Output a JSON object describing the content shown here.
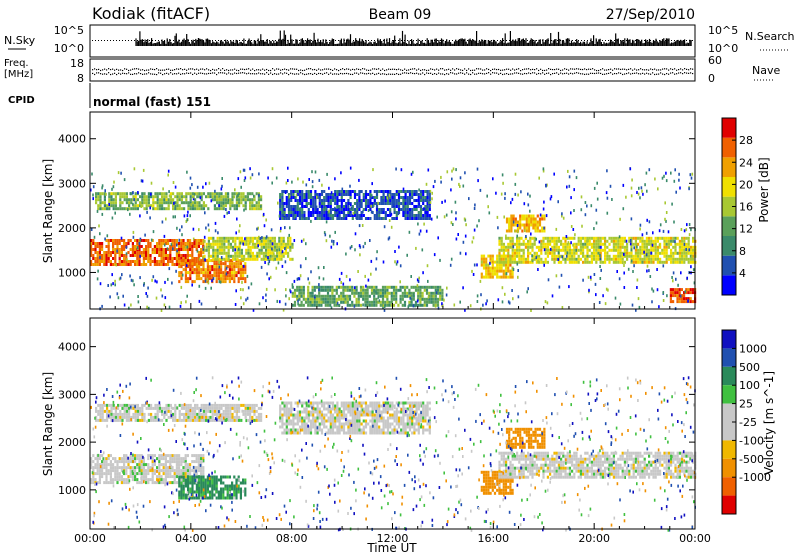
{
  "header": {
    "station": "Kodiak (fitACF)",
    "beam": "Beam 09",
    "date": "27/Sep/2010"
  },
  "top_panels": {
    "nsky_label": "N.Sky",
    "nsearch_label": "N.Search",
    "noise_ticks": [
      "10^5",
      "10^0"
    ],
    "freq_label": "Freq.",
    "freq_unit": "[MHz]",
    "freq_ticks": [
      "18",
      "8"
    ],
    "nave_label": "Nave",
    "nave_ticks": [
      "60",
      "0"
    ],
    "cpid_label": "CPID",
    "cpid_value": "normal (fast) 151"
  },
  "colors": {
    "power_scale": [
      "#0000ff",
      "#2050b0",
      "#3a8a6a",
      "#5aa05a",
      "#a8c832",
      "#f0e000",
      "#f0a000",
      "#f06000",
      "#e00000"
    ],
    "velocity_scale": [
      "#e00000",
      "#f06000",
      "#f09000",
      "#f0b800",
      "#c8c8c8",
      "#c8c8c8",
      "#40c040",
      "#2a8a5a",
      "#2050b0",
      "#1010c0"
    ]
  },
  "chart_data": [
    {
      "type": "heatmap",
      "panel": "power",
      "ylabel": "Slant Range [km]",
      "ylim": [
        180,
        4600
      ],
      "yticks": [
        "1000",
        "2000",
        "3000",
        "4000"
      ],
      "xlim_hours": [
        0,
        24
      ],
      "colorbar_label": "Power [dB]",
      "colorbar_range": [
        0,
        32
      ],
      "colorbar_ticks": [
        "4",
        "8",
        "12",
        "16",
        "20",
        "24",
        "28"
      ],
      "echo_regions": [
        {
          "t": [
            0,
            4.5
          ],
          "r": [
            1150,
            1750
          ],
          "value": 26
        },
        {
          "t": [
            0.2,
            6.8
          ],
          "r": [
            2450,
            2800
          ],
          "value": 14
        },
        {
          "t": [
            3.5,
            6.2
          ],
          "r": [
            800,
            1300
          ],
          "value": 25
        },
        {
          "t": [
            4.5,
            8.0
          ],
          "r": [
            1300,
            1800
          ],
          "value": 17
        },
        {
          "t": [
            7.5,
            13.5
          ],
          "r": [
            2200,
            2850
          ],
          "value": 5
        },
        {
          "t": [
            8.0,
            14.0
          ],
          "r": [
            280,
            700
          ],
          "value": 12
        },
        {
          "t": [
            15.5,
            16.8
          ],
          "r": [
            900,
            1400
          ],
          "value": 21
        },
        {
          "t": [
            16.2,
            24.0
          ],
          "r": [
            1250,
            1800
          ],
          "value": 18
        },
        {
          "t": [
            16.5,
            18.0
          ],
          "r": [
            1900,
            2300
          ],
          "value": 22
        },
        {
          "t": [
            23.0,
            24.0
          ],
          "r": [
            380,
            650
          ],
          "value": 28
        }
      ]
    },
    {
      "type": "heatmap",
      "panel": "velocity",
      "ylabel": "Slant Range [km]",
      "ylim": [
        180,
        4600
      ],
      "yticks": [
        "1000",
        "2000",
        "3000",
        "4000"
      ],
      "xlim_hours": [
        0,
        24
      ],
      "xticks": [
        "00:00",
        "04:00",
        "08:00",
        "12:00",
        "16:00",
        "20:00",
        "00:00"
      ],
      "xlabel": "Time UT",
      "colorbar_label": "Velocity [m s^-1]",
      "colorbar_ticks": [
        "1000",
        "500",
        "100",
        "25",
        "-25",
        "-100",
        "-500",
        "-1000"
      ],
      "echo_regions": [
        {
          "t": [
            0,
            4.5
          ],
          "r": [
            1150,
            1750
          ],
          "value": 0
        },
        {
          "t": [
            0.2,
            6.8
          ],
          "r": [
            2450,
            2800
          ],
          "value": 0
        },
        {
          "t": [
            3.5,
            6.2
          ],
          "r": [
            800,
            1300
          ],
          "value": 120
        },
        {
          "t": [
            7.5,
            13.5
          ],
          "r": [
            2200,
            2850
          ],
          "value": 0
        },
        {
          "t": [
            15.5,
            16.8
          ],
          "r": [
            900,
            1400
          ],
          "value": -350
        },
        {
          "t": [
            16.2,
            24.0
          ],
          "r": [
            1250,
            1800
          ],
          "value": 0
        },
        {
          "t": [
            16.5,
            18.0
          ],
          "r": [
            1900,
            2300
          ],
          "value": -300
        }
      ]
    }
  ]
}
